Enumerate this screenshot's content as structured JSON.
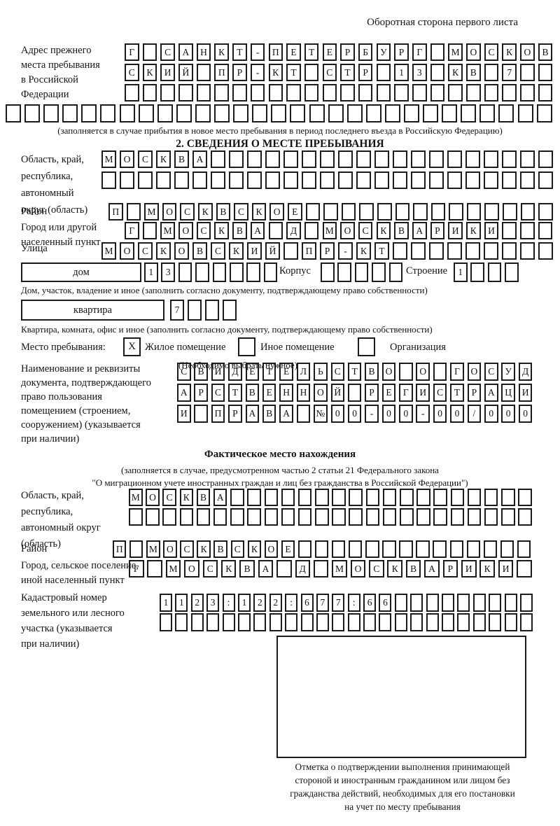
{
  "page": {
    "back_note": "Оборотная сторона первого листа"
  },
  "prev_address": {
    "label": [
      "Адрес прежнего",
      "места пребывания",
      "в Российской",
      "Федерации"
    ],
    "row1": "Г САНКТ-ПЕТЕРБУРГ МОСКОВ",
    "row2": "СКИЙ ПР-КТ СТР 13 КВ 7",
    "row3": "",
    "row4": "",
    "note": "(заполняется в случае прибытия в новое место пребывания в период последнего въезда в Российскую Федерацию)"
  },
  "section2": {
    "title": "2. СВЕДЕНИЯ О МЕСТЕ ПРЕБЫВАНИЯ",
    "oblast_label": [
      "Область, край,",
      "республика,",
      "автономный",
      "округ (область)"
    ],
    "oblast_row1": "МОСКВА",
    "oblast_row2": "",
    "raion_label": "Район",
    "raion_row": "П МОСКВСКОЕ",
    "gorod_label": [
      "Город или другой",
      "населенный пункт"
    ],
    "gorod_row": "Г МОСКВА Д МОСКВАРИКИ",
    "ulitsa_label": "Улица",
    "ulitsa_row": "МОСКОВСКИЙ ПР-КТ",
    "dom": {
      "label": "дом",
      "cells": "13",
      "korpus_label": "Корпус",
      "korpus_cells": "",
      "stroenie_label": "Строение",
      "stroenie_cells": "1",
      "note": "Дом, участок, владение и иное (заполнить согласно документу, подтверждающему право собственности)"
    },
    "kvartira": {
      "label": "квартира",
      "cells": "7",
      "note": "Квартира, комната, офис и иное (заполнить согласно документу, подтверждающему право собственности)"
    },
    "mesto": {
      "label": "Место пребывания:",
      "zhiloe_mark": "X",
      "zhiloe": "Жилое помещение",
      "inoe_mark": "",
      "inoe": "Иное помещение",
      "org_mark": "",
      "org": "Организация",
      "note": "(Необходимо выбрать нужное)"
    },
    "doc_label": [
      "Наименование и реквизиты",
      "документа, подтверждающего",
      "право пользования",
      "помещением (строением,",
      "сооружением) (указывается",
      "при наличии)"
    ],
    "doc_row1": "СВИДЕТЕЛЬСТВО О ГОСУД",
    "doc_row2": "АРСТВЕННОЙ РЕГИСТРАЦИ",
    "doc_row3": "И ПРАВА №00-00-00/000"
  },
  "fact": {
    "title": "Фактическое место нахождения",
    "note1": "(заполняется в случае, предусмотренном частью 2 статьи 21 Федерального закона",
    "note2": "\"О миграционном учете иностранных граждан и лиц без гражданства в Российской Федерации\")",
    "oblast_label": [
      "Область, край,",
      "республика,",
      "автономный округ",
      "(область)"
    ],
    "oblast_row1": "МОСКВА",
    "oblast_row2": "",
    "raion_label": "Район",
    "raion_row": "П МОСКВСКОЕ",
    "gorod_label": [
      "Город, сельское поселение,",
      "иной населенный пункт"
    ],
    "gorod_row": "Г МОСКВА Д МОСКВАРИКИ",
    "kadastr_label": [
      "Кадастровый номер",
      "земельного или лесного",
      "участка (указывается",
      "при наличии)"
    ],
    "kadastr_row1": "1123:122:677:66",
    "kadastr_row2": "",
    "stamp_caption": [
      "Отметка о подтверждении выполнения принимающей",
      "стороной и иностранным гражданином или лицом без",
      "гражданства действий, необходимых для его постановки",
      "на учет по месту пребывания"
    ]
  }
}
